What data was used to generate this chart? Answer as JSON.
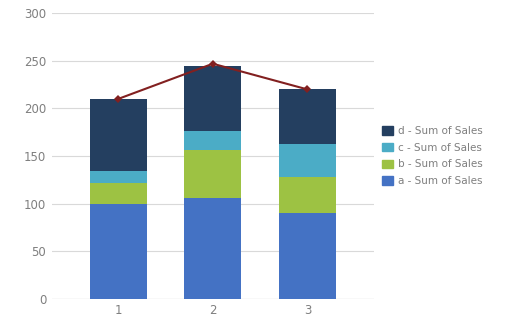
{
  "categories": [
    1,
    2,
    3
  ],
  "a": [
    100,
    106,
    90
  ],
  "b": [
    22,
    50,
    38
  ],
  "c": [
    12,
    20,
    35
  ],
  "d": [
    76,
    69,
    57
  ],
  "line_values": [
    210,
    247,
    220
  ],
  "color_a": "#4472C4",
  "color_b": "#9DC243",
  "color_c": "#4BACC6",
  "color_d": "#243F60",
  "color_line": "#822020",
  "ylim": [
    0,
    300
  ],
  "yticks": [
    0,
    50,
    100,
    150,
    200,
    250,
    300
  ],
  "legend_labels": [
    "d - Sum of Sales",
    "c - Sum of Sales",
    "b - Sum of Sales",
    "a - Sum of Sales"
  ],
  "bar_width": 0.6,
  "background_color": "#FFFFFF",
  "grid_color": "#D9D9D9",
  "tick_color": "#7F7F7F",
  "tick_fontsize": 8.5
}
